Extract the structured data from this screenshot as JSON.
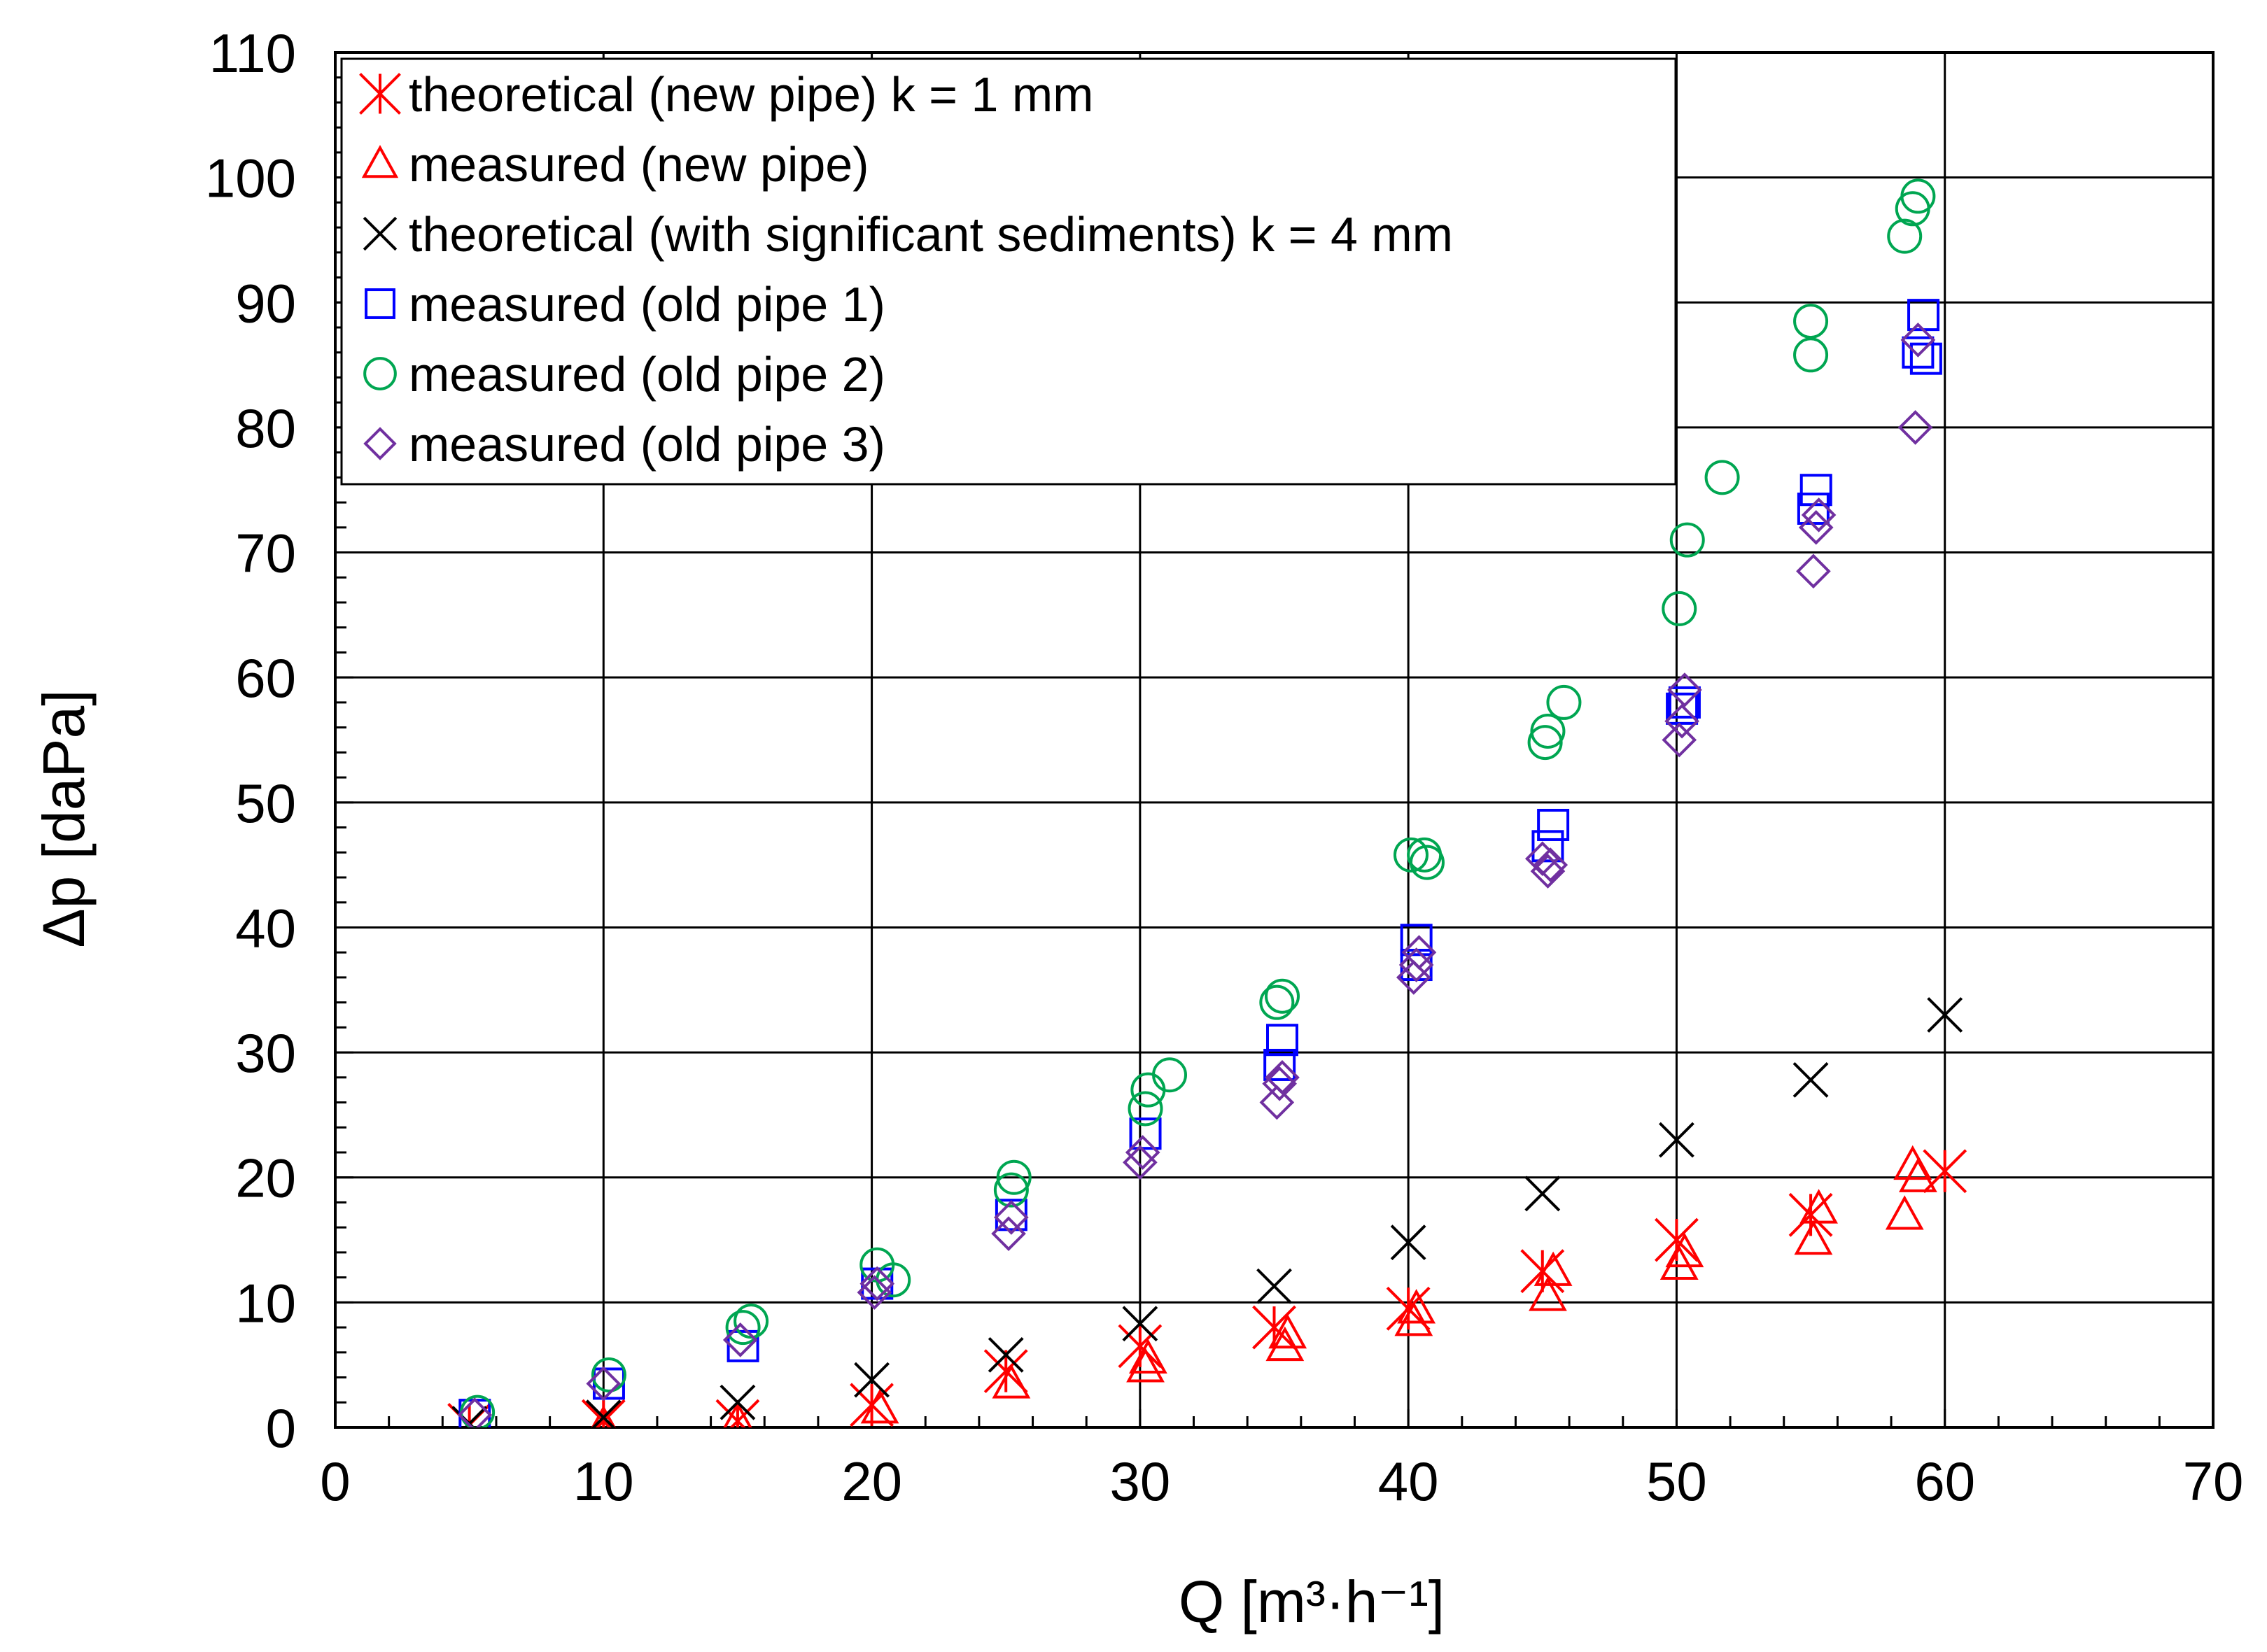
{
  "chart_data": {
    "type": "scatter",
    "title": "",
    "xlabel": "Q [m³·h⁻¹]",
    "ylabel": "Δp [daPa]",
    "xlim": [
      0,
      70
    ],
    "ylim": [
      0,
      110
    ],
    "x_major": 10,
    "x_minor": 2,
    "y_major": 10,
    "y_minor": 2,
    "grid": true,
    "legend_position": "top-left",
    "series": [
      {
        "name": "theoretical (new pipe) k = 1 mm",
        "marker": "asterisk",
        "color": "#ff0000",
        "points": [
          [
            5,
            0.2
          ],
          [
            10,
            0.5
          ],
          [
            15,
            0.5
          ],
          [
            20,
            1.8
          ],
          [
            25,
            4.5
          ],
          [
            30,
            6.5
          ],
          [
            35,
            8.0
          ],
          [
            40,
            9.5
          ],
          [
            45,
            12.5
          ],
          [
            50,
            15.0
          ],
          [
            55,
            17.0
          ],
          [
            60,
            20.5
          ]
        ]
      },
      {
        "name": "measured (new pipe)",
        "marker": "triangle",
        "color": "#ff0000",
        "points": [
          [
            10,
            0.2
          ],
          [
            15,
            0.5
          ],
          [
            20.3,
            1.5
          ],
          [
            25.2,
            3.5
          ],
          [
            30.2,
            4.8
          ],
          [
            30.3,
            5.5
          ],
          [
            35.4,
            6.5
          ],
          [
            35.5,
            7.5
          ],
          [
            40.2,
            8.5
          ],
          [
            40.3,
            9.5
          ],
          [
            45.2,
            10.5
          ],
          [
            45.4,
            12.5
          ],
          [
            50.1,
            13.0
          ],
          [
            50.3,
            14.0
          ],
          [
            55.1,
            15.0
          ],
          [
            55.3,
            17.5
          ],
          [
            58.5,
            17.0
          ],
          [
            58.8,
            21.0
          ],
          [
            59,
            20.0
          ]
        ]
      },
      {
        "name": "theoretical (with significant sediments) k = 4 mm",
        "marker": "x",
        "color": "#000000",
        "points": [
          [
            5,
            0.3
          ],
          [
            10,
            0.8
          ],
          [
            15,
            2.0
          ],
          [
            20,
            3.8
          ],
          [
            25,
            5.8
          ],
          [
            30,
            8.3
          ],
          [
            35,
            11.3
          ],
          [
            40,
            14.8
          ],
          [
            45,
            18.7
          ],
          [
            50,
            23.0
          ],
          [
            55,
            27.8
          ],
          [
            60,
            33.0
          ]
        ]
      },
      {
        "name": "measured (old pipe 1)",
        "marker": "square",
        "color": "#0000ff",
        "points": [
          [
            5.2,
            1.0
          ],
          [
            10.2,
            3.5
          ],
          [
            15.2,
            6.5
          ],
          [
            20.2,
            11.5
          ],
          [
            25.2,
            17.0
          ],
          [
            30.2,
            23.5
          ],
          [
            35.2,
            29.0
          ],
          [
            35.3,
            31.0
          ],
          [
            40.3,
            37.0
          ],
          [
            40.3,
            39.0
          ],
          [
            45.2,
            46.5
          ],
          [
            45.4,
            48.2
          ],
          [
            50.2,
            57.5
          ],
          [
            50.3,
            58.0
          ],
          [
            55.1,
            73.5
          ],
          [
            55.2,
            75.0
          ],
          [
            59,
            86.0
          ],
          [
            59.2,
            89.0
          ],
          [
            59.3,
            85.5
          ]
        ]
      },
      {
        "name": "measured (old pipe 2)",
        "marker": "circle",
        "color": "#00a651",
        "points": [
          [
            5.3,
            1.2
          ],
          [
            10.2,
            4.2
          ],
          [
            15.2,
            8.0
          ],
          [
            15.5,
            8.5
          ],
          [
            20.2,
            13.0
          ],
          [
            20.8,
            11.8
          ],
          [
            25.2,
            19.0
          ],
          [
            25.3,
            20.0
          ],
          [
            30.2,
            25.5
          ],
          [
            30.3,
            27.0
          ],
          [
            31.1,
            28.2
          ],
          [
            35.1,
            34.0
          ],
          [
            35.3,
            34.5
          ],
          [
            40.1,
            45.8
          ],
          [
            40.6,
            45.8
          ],
          [
            40.7,
            45.2
          ],
          [
            45.1,
            54.8
          ],
          [
            45.2,
            55.7
          ],
          [
            45.8,
            58.0
          ],
          [
            50.1,
            65.5
          ],
          [
            50.4,
            71.0
          ],
          [
            51.7,
            76.0
          ],
          [
            55,
            85.8
          ],
          [
            55,
            88.5
          ],
          [
            58.5,
            95.3
          ],
          [
            58.8,
            97.5
          ],
          [
            59,
            98.5
          ]
        ]
      },
      {
        "name": "measured (old pipe 3)",
        "marker": "diamond",
        "color": "#7030a0",
        "points": [
          [
            5.2,
            1.0
          ],
          [
            10,
            3.5
          ],
          [
            15.1,
            7.0
          ],
          [
            20.1,
            10.8
          ],
          [
            20.2,
            11.5
          ],
          [
            25.1,
            15.5
          ],
          [
            25.2,
            16.8
          ],
          [
            30,
            21.2
          ],
          [
            30.1,
            22.0
          ],
          [
            35.1,
            26.0
          ],
          [
            35.2,
            27.5
          ],
          [
            35.3,
            28.0
          ],
          [
            40.2,
            36.0
          ],
          [
            40.3,
            37.0
          ],
          [
            40.4,
            38.0
          ],
          [
            45,
            45.5
          ],
          [
            45.2,
            44.5
          ],
          [
            45.3,
            45.0
          ],
          [
            50.1,
            55.0
          ],
          [
            50.2,
            56.5
          ],
          [
            50.3,
            59.0
          ],
          [
            55.1,
            68.5
          ],
          [
            55.2,
            72.0
          ],
          [
            55.3,
            73.0
          ],
          [
            58.9,
            80.0
          ],
          [
            59,
            87.0
          ]
        ]
      }
    ]
  }
}
